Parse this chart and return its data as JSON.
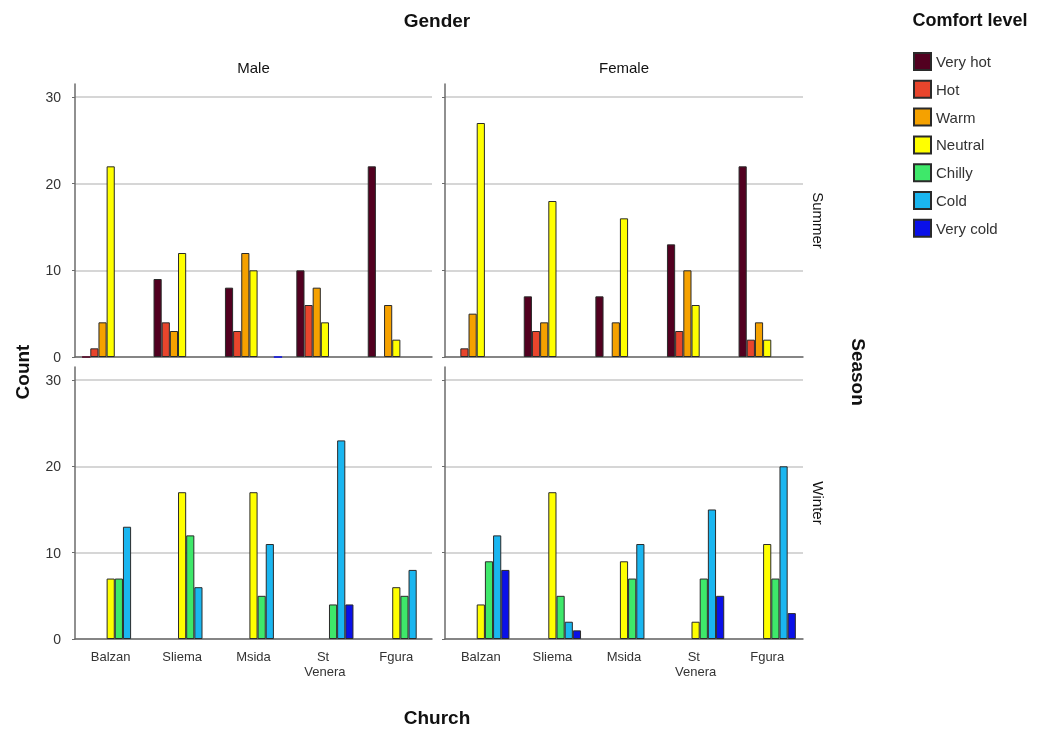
{
  "chart_data": [
    {
      "type": "bar",
      "title": "Male",
      "ylabel": "Count",
      "annotations": [
        "Gender"
      ],
      "legend": "top right",
      "legend_title": "Comfort level",
      "categories": [
        "Balzan",
        "Sliema",
        "Msida",
        "St Venera",
        "Fgura"
      ],
      "series": [
        {
          "name": "Very hot",
          "color": "#520020",
          "values": [
            0,
            9,
            8,
            10,
            22
          ]
        },
        {
          "name": "Hot",
          "color": "#e8452c",
          "values": [
            1,
            4,
            3,
            6,
            null
          ]
        },
        {
          "name": "Warm",
          "color": "#f5a100",
          "values": [
            4,
            3,
            12,
            8,
            6
          ]
        },
        {
          "name": "Neutral",
          "color": "#ffff00",
          "values": [
            22,
            12,
            10,
            4,
            2
          ]
        },
        {
          "name": "Chilly",
          "color": "#3ee86a",
          "values": [
            null,
            null,
            null,
            null,
            null
          ]
        },
        {
          "name": "Cold",
          "color": "#1ab6f0",
          "values": [
            null,
            null,
            null,
            null,
            null
          ]
        },
        {
          "name": "Very cold",
          "color": "#0a10e8",
          "values": [
            null,
            null,
            0,
            null,
            null
          ]
        }
      ],
      "ylim": [
        0,
        31.5
      ],
      "yticks": [
        0,
        10,
        20,
        30
      ],
      "grid": "y",
      "tick_labels": "y"
    },
    {
      "type": "bar",
      "title": "Female",
      "y2label": "Summer",
      "annotations": [
        "Season"
      ],
      "categories": [
        "Balzan",
        "Sliema",
        "Msida",
        "St Venera",
        "Fgura"
      ],
      "series": [
        {
          "color": "#520020",
          "values": [
            null,
            7,
            7,
            13,
            22
          ]
        },
        {
          "color": "#e8452c",
          "values": [
            1,
            3,
            null,
            3,
            2
          ]
        },
        {
          "color": "#f5a100",
          "values": [
            5,
            4,
            4,
            10,
            4
          ]
        },
        {
          "color": "#ffff00",
          "values": [
            27,
            18,
            16,
            6,
            2
          ]
        },
        {
          "color": "#3ee86a",
          "values": [
            null,
            null,
            null,
            null,
            null
          ]
        },
        {
          "color": "#1ab6f0",
          "values": [
            null,
            null,
            null,
            null,
            null
          ]
        },
        {
          "color": "#0a10e8",
          "values": [
            null,
            null,
            null,
            null,
            null
          ]
        }
      ],
      "ylim": [
        0,
        31.5
      ],
      "yticks": [
        0,
        10,
        20,
        30
      ],
      "grid": "y",
      "tick_labels": false
    },
    {
      "type": "bar",
      "xlabel": "Church",
      "categories": [
        "Balzan",
        "Sliema",
        "Msida",
        "St Venera",
        "Fgura"
      ],
      "series": [
        {
          "color": "#520020",
          "values": [
            null,
            null,
            null,
            null,
            null
          ]
        },
        {
          "color": "#e8452c",
          "values": [
            null,
            null,
            null,
            null,
            null
          ]
        },
        {
          "color": "#f5a100",
          "values": [
            null,
            null,
            null,
            null,
            null
          ]
        },
        {
          "color": "#ffff00",
          "values": [
            7,
            17,
            17,
            null,
            6
          ]
        },
        {
          "color": "#3ee86a",
          "values": [
            7,
            12,
            5,
            4,
            5
          ]
        },
        {
          "color": "#1ab6f0",
          "values": [
            13,
            6,
            11,
            23,
            8
          ]
        },
        {
          "color": "#0a10e8",
          "values": [
            null,
            null,
            null,
            4,
            null
          ]
        }
      ],
      "ylim": [
        0,
        31.5
      ],
      "yticks": [
        0,
        10,
        20,
        30
      ],
      "grid": "y"
    },
    {
      "type": "bar",
      "y2label": "Winter",
      "categories": [
        "Balzan",
        "Sliema",
        "Msida",
        "St Venera",
        "Fgura"
      ],
      "series": [
        {
          "color": "#520020",
          "values": [
            null,
            null,
            null,
            null,
            null
          ]
        },
        {
          "color": "#e8452c",
          "values": [
            null,
            null,
            null,
            null,
            null
          ]
        },
        {
          "color": "#f5a100",
          "values": [
            null,
            null,
            null,
            null,
            null
          ]
        },
        {
          "color": "#ffff00",
          "values": [
            4,
            17,
            9,
            2,
            11
          ]
        },
        {
          "color": "#3ee86a",
          "values": [
            9,
            5,
            7,
            7,
            7
          ]
        },
        {
          "color": "#1ab6f0",
          "values": [
            12,
            2,
            11,
            15,
            20
          ]
        },
        {
          "color": "#0a10e8",
          "values": [
            8,
            1,
            null,
            5,
            3
          ]
        }
      ],
      "ylim": [
        0,
        31.5
      ],
      "yticks": [
        0,
        10,
        20,
        30
      ],
      "grid": "y",
      "tick_labels": "x"
    }
  ]
}
